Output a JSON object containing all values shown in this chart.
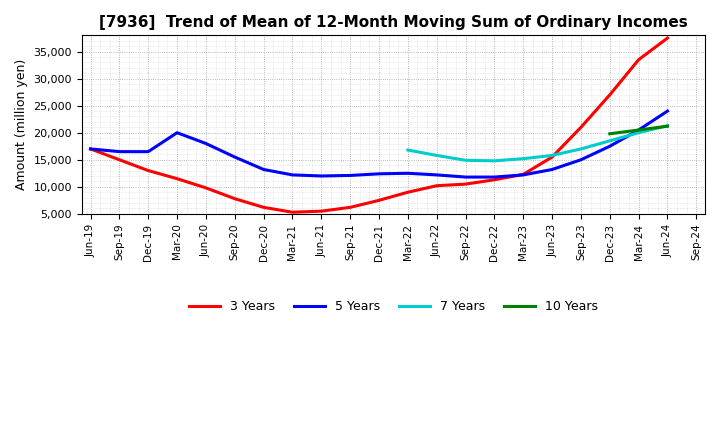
{
  "title": "[7936]  Trend of Mean of 12-Month Moving Sum of Ordinary Incomes",
  "ylabel": "Amount (million yen)",
  "background_color": "#ffffff",
  "grid_color": "#999999",
  "ylim": [
    5000,
    38000
  ],
  "yticks": [
    5000,
    10000,
    15000,
    20000,
    25000,
    30000,
    35000
  ],
  "series": {
    "3 Years": {
      "color": "#ff0000",
      "data": {
        "Jun-19": 17000,
        "Sep-19": 15000,
        "Dec-19": 13000,
        "Mar-20": 11500,
        "Jun-20": 9800,
        "Sep-20": 7800,
        "Dec-20": 6200,
        "Mar-21": 5300,
        "Jun-21": 5500,
        "Sep-21": 6200,
        "Dec-21": 7500,
        "Mar-22": 9000,
        "Jun-22": 10200,
        "Sep-22": 10500,
        "Dec-22": 11300,
        "Mar-23": 12300,
        "Jun-23": 15500,
        "Sep-23": 21000,
        "Dec-23": 27000,
        "Mar-24": 33500,
        "Jun-24": 37500
      }
    },
    "5 Years": {
      "color": "#0000ff",
      "data": {
        "Jun-19": 17000,
        "Sep-19": 16500,
        "Dec-19": 16500,
        "Mar-20": 20000,
        "Jun-20": 18000,
        "Sep-20": 15500,
        "Dec-20": 13200,
        "Mar-21": 12200,
        "Jun-21": 12000,
        "Sep-21": 12100,
        "Dec-21": 12400,
        "Mar-22": 12500,
        "Jun-22": 12200,
        "Sep-22": 11800,
        "Dec-22": 11800,
        "Mar-23": 12200,
        "Jun-23": 13200,
        "Sep-23": 15000,
        "Dec-23": 17500,
        "Mar-24": 20500,
        "Jun-24": 24000
      }
    },
    "7 Years": {
      "color": "#00cccc",
      "data": {
        "Mar-22": 16800,
        "Jun-22": 15800,
        "Sep-22": 14900,
        "Dec-22": 14800,
        "Mar-23": 15200,
        "Jun-23": 15800,
        "Sep-23": 17000,
        "Dec-23": 18500,
        "Mar-24": 20000,
        "Jun-24": 21300
      }
    },
    "10 Years": {
      "color": "#008000",
      "data": {
        "Dec-23": 19800,
        "Mar-24": 20500,
        "Jun-24": 21200
      }
    }
  },
  "x_labels": [
    "Jun-19",
    "Sep-19",
    "Dec-19",
    "Mar-20",
    "Jun-20",
    "Sep-20",
    "Dec-20",
    "Mar-21",
    "Jun-21",
    "Sep-21",
    "Dec-21",
    "Mar-22",
    "Jun-22",
    "Sep-22",
    "Dec-22",
    "Mar-23",
    "Jun-23",
    "Sep-23",
    "Dec-23",
    "Mar-24",
    "Jun-24",
    "Sep-24"
  ]
}
